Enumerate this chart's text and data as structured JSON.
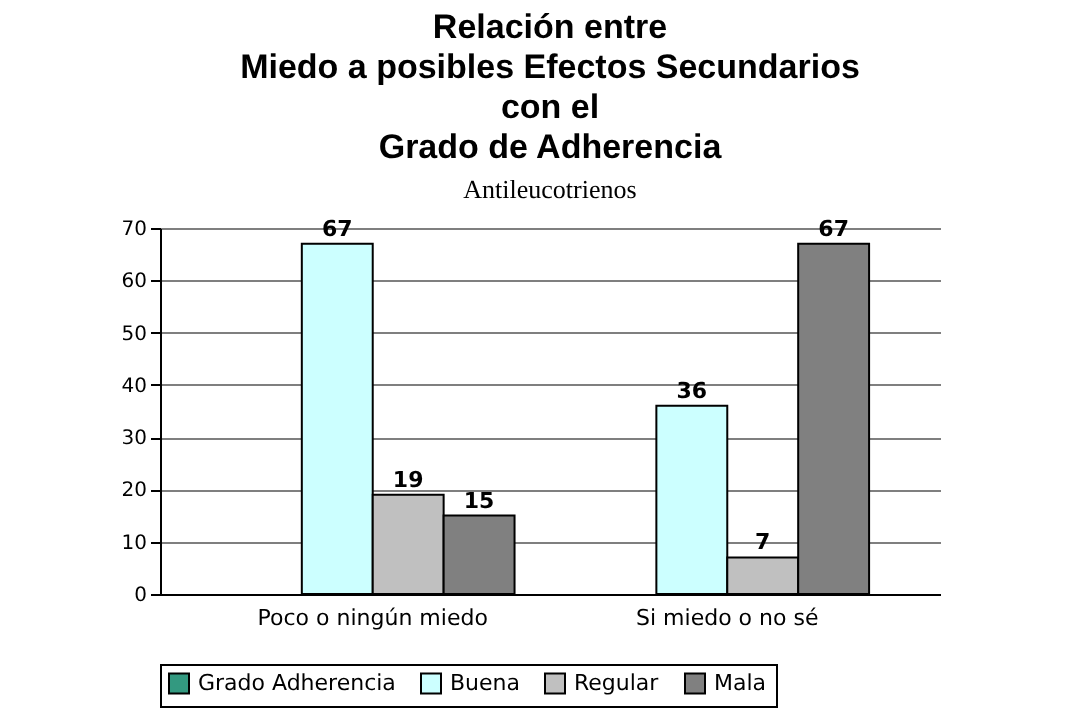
{
  "chart_data": {
    "type": "bar",
    "title": "Relación entre\nMiedo a posibles Efectos Secundarios\ncon el\nGrado de Adherencia",
    "subtitle": "Antileucotrienos",
    "categories": [
      "Poco o ningún miedo",
      "Si miedo o no sé"
    ],
    "series": [
      {
        "name": "Grado Adherencia",
        "color": "#339980",
        "values": [
          null,
          null
        ]
      },
      {
        "name": "Buena",
        "color": "#ccffff",
        "values": [
          67,
          36
        ]
      },
      {
        "name": "Regular",
        "color": "#c0c0c0",
        "values": [
          19,
          7
        ]
      },
      {
        "name": "Mala",
        "color": "#808080",
        "values": [
          15,
          67
        ]
      }
    ],
    "ylim": [
      0,
      70
    ],
    "yticks": [
      0,
      10,
      20,
      30,
      40,
      50,
      60,
      70
    ],
    "grid": "y",
    "legend": "bottom",
    "data_labels": true
  }
}
